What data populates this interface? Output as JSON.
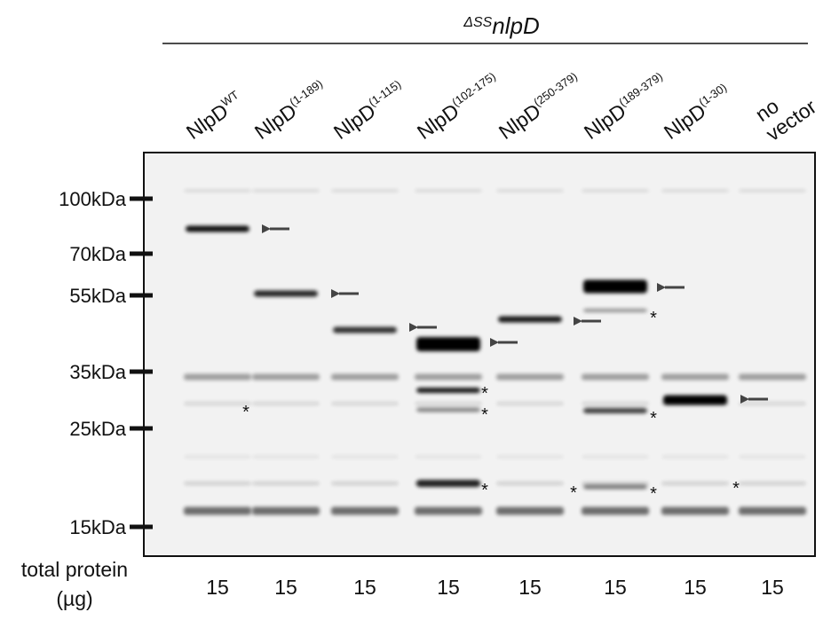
{
  "header": {
    "prefix": "ΔSS",
    "gene": "nlpD"
  },
  "lanes": [
    {
      "name": "NlpD",
      "sup": "WT",
      "amount": 15
    },
    {
      "name": "NlpD",
      "sup": "(1-189)",
      "amount": 15
    },
    {
      "name": "NlpD",
      "sup": "(1-115)",
      "amount": 15
    },
    {
      "name": "NlpD",
      "sup": "(102-175)",
      "amount": 15
    },
    {
      "name": "NlpD",
      "sup": "(250-379)",
      "amount": 15
    },
    {
      "name": "NlpD",
      "sup": "(189-379)",
      "amount": 15
    },
    {
      "name": "NlpD",
      "sup": "(1-30)",
      "amount": 15
    },
    {
      "lines": [
        "no",
        "vector"
      ],
      "amount": 15
    }
  ],
  "markers": [
    "100kDa",
    "70kDa",
    "55kDa",
    "35kDa",
    "25kDa",
    "15kDa"
  ],
  "amount_label": [
    "total protein",
    "(µg)"
  ],
  "nonspecific_symbol": "*"
}
